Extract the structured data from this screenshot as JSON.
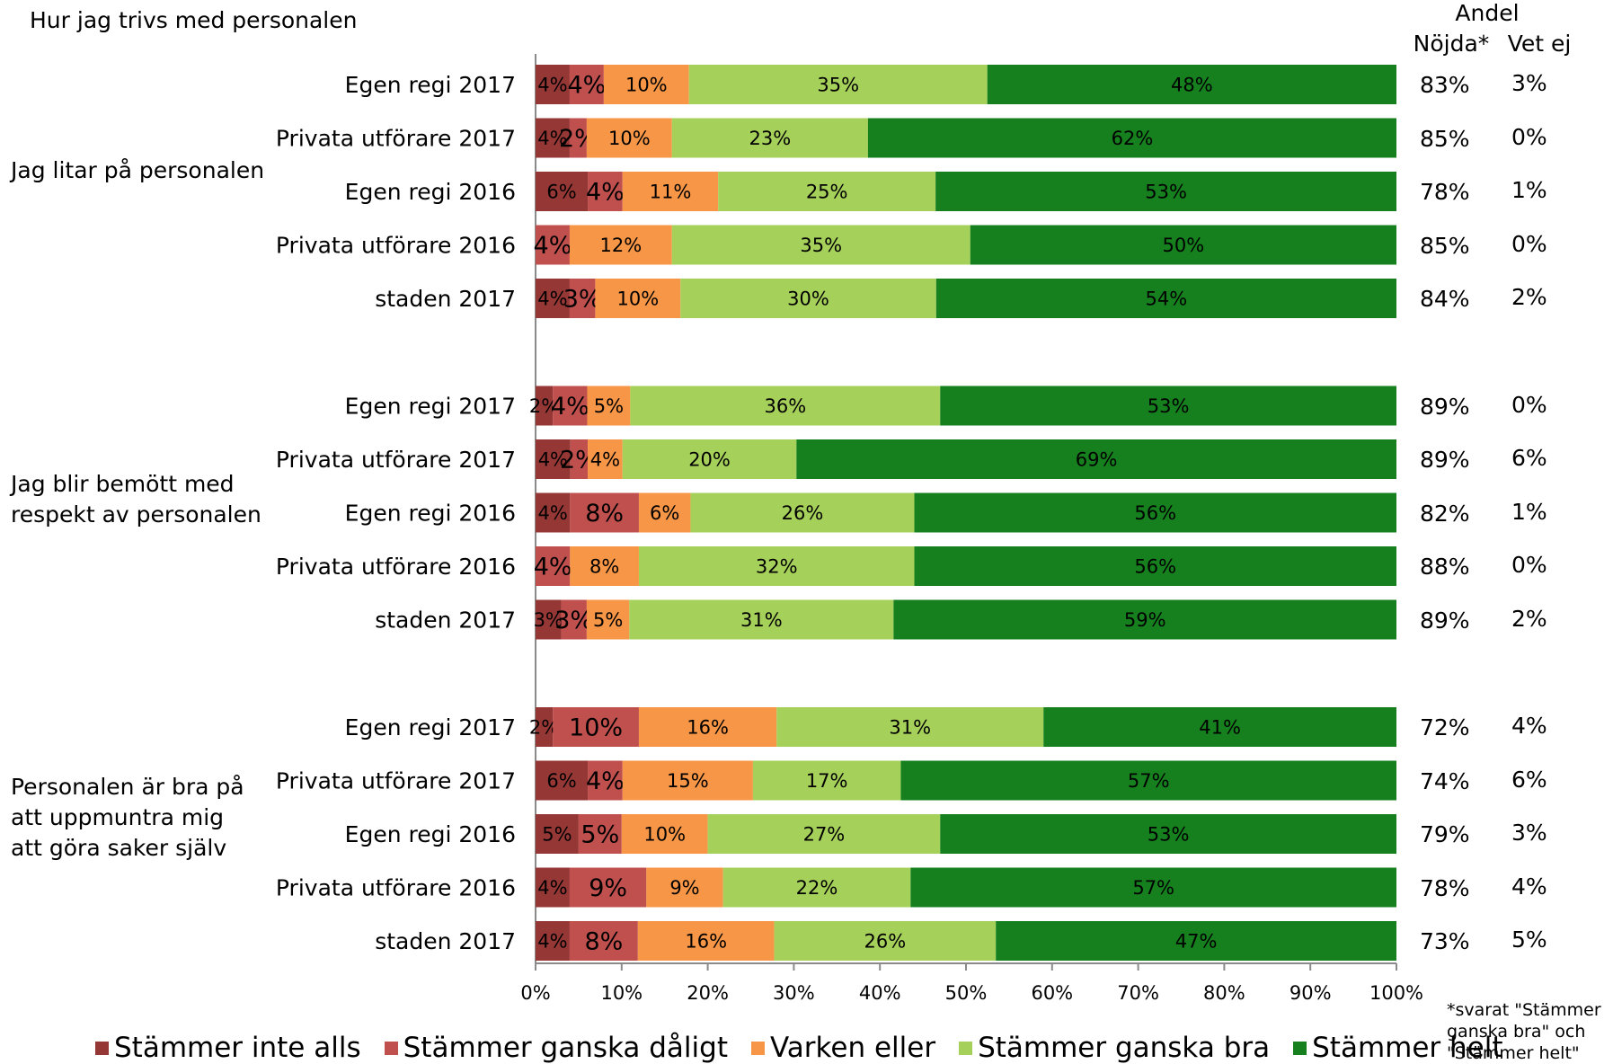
{
  "caption": "Hur jag trivs med personalen",
  "columns": {
    "andel": "Andel",
    "nojda": "Nöjda*",
    "vet_ej": "Vet ej"
  },
  "footnote": "*svarat \"Stämmer ganska bra\" och \"Stämmer helt\"",
  "colors": {
    "Stämmer inte alls": "#953735",
    "Stämmer ganska dåligt": "#c0504d",
    "Varken eller": "#f79646",
    "Stämmer ganska bra": "#a5d05a",
    "Stämmer helt": "#16801e"
  },
  "chart_data": {
    "type": "bar",
    "orientation": "horizontal",
    "stacked": true,
    "xlim": [
      0,
      100
    ],
    "x_ticks": [
      "0%",
      "10%",
      "20%",
      "30%",
      "40%",
      "50%",
      "60%",
      "70%",
      "80%",
      "90%",
      "100%"
    ],
    "legend": [
      "Stämmer inte alls",
      "Stämmer ganska dåligt",
      "Varken eller",
      "Stämmer ganska bra",
      "Stämmer helt"
    ],
    "legend_position": "bottom",
    "groups": [
      {
        "label": "Jag litar på personalen",
        "rows": [
          {
            "category": "Egen regi 2017",
            "values": [
              4,
              4,
              10,
              35,
              48
            ],
            "nojda": "83%",
            "vet_ej": "3%"
          },
          {
            "category": "Privata utförare 2017",
            "values": [
              4,
              2,
              10,
              23,
              62
            ],
            "nojda": "85%",
            "vet_ej": "0%"
          },
          {
            "category": "Egen regi 2016",
            "values": [
              6,
              4,
              11,
              25,
              53
            ],
            "nojda": "78%",
            "vet_ej": "1%"
          },
          {
            "category": "Privata utförare 2016",
            "values": [
              0,
              4,
              12,
              35,
              50
            ],
            "nojda": "85%",
            "vet_ej": "0%"
          },
          {
            "category": "staden 2017",
            "values": [
              4,
              3,
              10,
              30,
              54
            ],
            "nojda": "84%",
            "vet_ej": "2%"
          }
        ]
      },
      {
        "label": "Jag blir bemött med respekt av personalen",
        "rows": [
          {
            "category": "Egen regi 2017",
            "values": [
              2,
              4,
              5,
              36,
              53
            ],
            "nojda": "89%",
            "vet_ej": "0%"
          },
          {
            "category": "Privata utförare 2017",
            "values": [
              4,
              2,
              4,
              20,
              69
            ],
            "nojda": "89%",
            "vet_ej": "6%"
          },
          {
            "category": "Egen regi 2016",
            "values": [
              4,
              8,
              6,
              26,
              56
            ],
            "nojda": "82%",
            "vet_ej": "1%"
          },
          {
            "category": "Privata utförare 2016",
            "values": [
              0,
              4,
              8,
              32,
              56
            ],
            "nojda": "88%",
            "vet_ej": "0%"
          },
          {
            "category": "staden 2017",
            "values": [
              3,
              3,
              5,
              31,
              59
            ],
            "nojda": "89%",
            "vet_ej": "2%"
          }
        ]
      },
      {
        "label": "Personalen är bra på att uppmuntra mig att göra saker själv",
        "rows": [
          {
            "category": "Egen regi 2017",
            "values": [
              2,
              10,
              16,
              31,
              41
            ],
            "nojda": "72%",
            "vet_ej": "4%"
          },
          {
            "category": "Privata utförare 2017",
            "values": [
              6,
              4,
              15,
              17,
              57
            ],
            "nojda": "74%",
            "vet_ej": "6%"
          },
          {
            "category": "Egen regi 2016",
            "values": [
              5,
              5,
              10,
              27,
              53
            ],
            "nojda": "79%",
            "vet_ej": "3%"
          },
          {
            "category": "Privata utförare 2016",
            "values": [
              4,
              9,
              9,
              22,
              57
            ],
            "nojda": "78%",
            "vet_ej": "4%"
          },
          {
            "category": "staden 2017",
            "values": [
              4,
              8,
              16,
              26,
              47
            ],
            "nojda": "73%",
            "vet_ej": "5%"
          }
        ]
      }
    ]
  }
}
